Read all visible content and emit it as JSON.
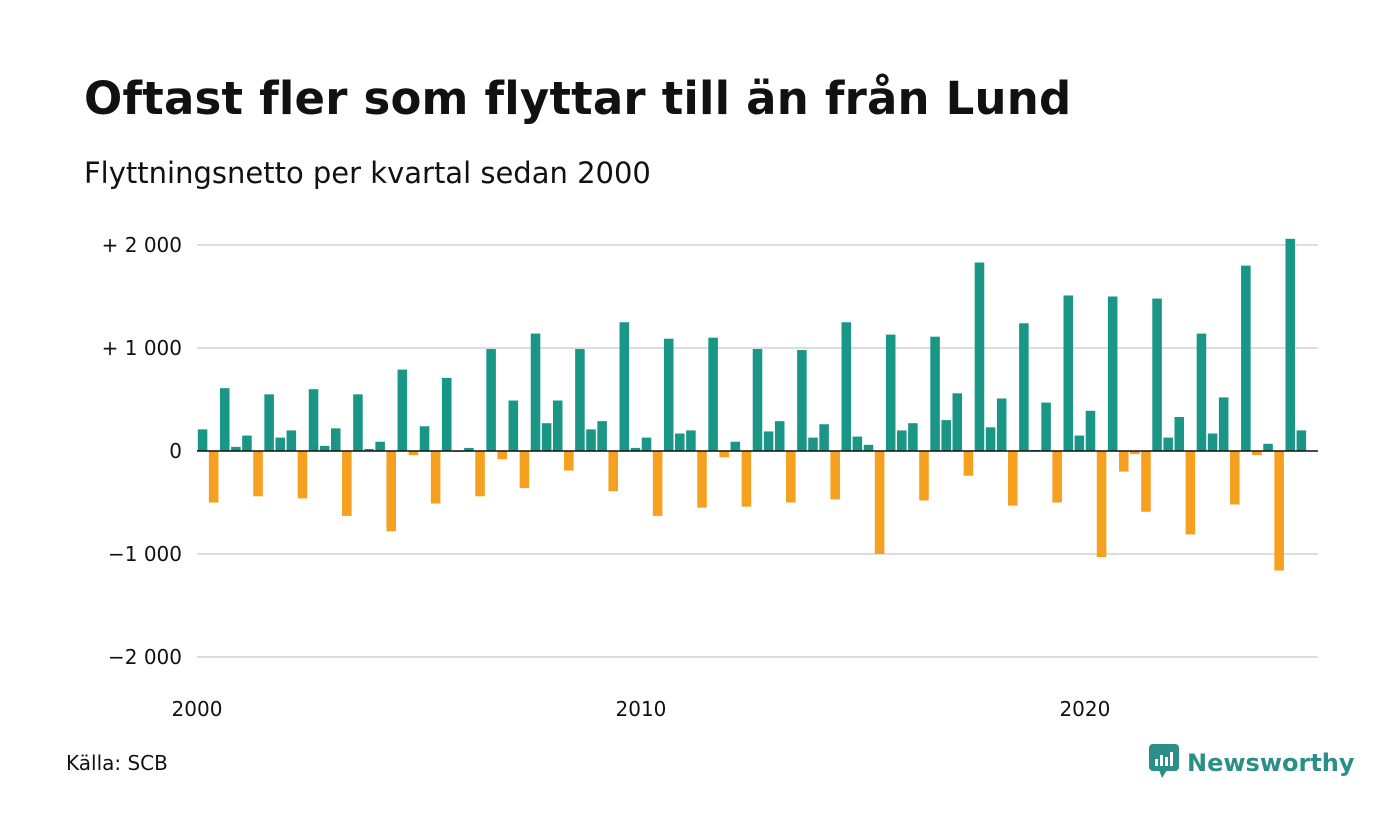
{
  "title": "Oftast fler som flyttar till än från Lund",
  "subtitle": "Flyttningsnetto per kvartal sedan 2000",
  "source": "Källa: SCB",
  "brand": {
    "name": "Newsworthy",
    "icon": "newsworthy-logo-icon"
  },
  "colors": {
    "positive": "#1a9687",
    "negative": "#f5a01f",
    "grid": "#dddddd",
    "axis": "#111111"
  },
  "chart_data": {
    "type": "bar",
    "title": "Oftast fler som flyttar till än från Lund",
    "subtitle": "Flyttningsnetto per kvartal sedan 2000",
    "xlabel": "",
    "ylabel": "",
    "ylim": [
      -2000,
      2000
    ],
    "grid": true,
    "legend": "none",
    "xlim": [
      2000,
      2025.25
    ],
    "x_ticks": [
      {
        "value": 2000,
        "label": "2000"
      },
      {
        "value": 2010,
        "label": "2010"
      },
      {
        "value": 2020,
        "label": "2020"
      }
    ],
    "y_ticks": [
      {
        "value": 2000,
        "label": "+ 2 000"
      },
      {
        "value": 1000,
        "label": "+ 1 000"
      },
      {
        "value": 0,
        "label": "0"
      },
      {
        "value": -1000,
        "label": "−1 000"
      },
      {
        "value": -2000,
        "label": "−2 000"
      }
    ],
    "start_year": 2000,
    "quarters": [
      "Q1",
      "Q2",
      "Q3",
      "Q4"
    ],
    "values": [
      210,
      -500,
      610,
      40,
      150,
      -440,
      550,
      130,
      200,
      -460,
      600,
      50,
      220,
      -630,
      550,
      20,
      90,
      -780,
      790,
      -40,
      240,
      -510,
      710,
      -10,
      30,
      -440,
      990,
      -80,
      490,
      -360,
      1140,
      270,
      490,
      -190,
      990,
      210,
      290,
      -390,
      1250,
      30,
      130,
      -630,
      1090,
      170,
      200,
      -550,
      1100,
      -60,
      90,
      -540,
      990,
      190,
      290,
      -500,
      980,
      130,
      260,
      -470,
      1250,
      140,
      60,
      -1000,
      1130,
      200,
      270,
      -480,
      1110,
      300,
      560,
      -240,
      1830,
      230,
      510,
      -530,
      1240,
      10,
      470,
      -500,
      1510,
      150,
      390,
      -1030,
      1500,
      -200,
      -30,
      -590,
      1480,
      130,
      330,
      -810,
      1140,
      170,
      520,
      -520,
      1800,
      -40,
      70,
      -1160,
      2060,
      200
    ]
  }
}
